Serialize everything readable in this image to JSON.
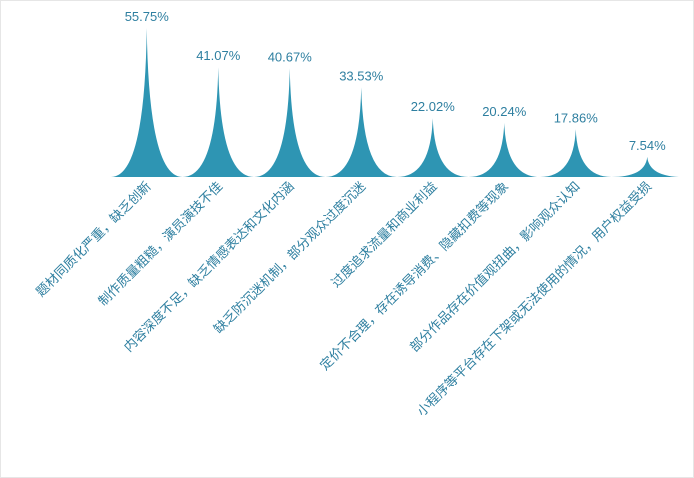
{
  "chart_data": {
    "type": "bar",
    "bar_shape": "pictorial-spike",
    "color": "#2e95b3",
    "label_color": "#2e7fa0",
    "value_suffix": "%",
    "categories": [
      "题材同质化严重，缺乏创新",
      "制作质量粗糙，演员演技不佳",
      "内容深度不足，缺乏情感表达和文化内涵",
      "缺乏防沉迷机制，部分观众过度沉迷",
      "过度追求流量和商业利益",
      "定价不合理，存在诱导消费、隐藏扣费等现象",
      "部分作品存在价值观扭曲，影响观众认知",
      "小程序等平台存在下架或无法使用的情况，用户权益受损"
    ],
    "values": [
      55.75,
      41.07,
      40.67,
      33.53,
      22.02,
      20.24,
      17.86,
      7.54
    ],
    "value_labels": [
      "55.75%",
      "41.07%",
      "40.67%",
      "33.53%",
      "22.02%",
      "20.24%",
      "17.86%",
      "7.54%"
    ],
    "ylim": [
      0,
      55.75
    ],
    "grid": false,
    "legend": "none"
  }
}
